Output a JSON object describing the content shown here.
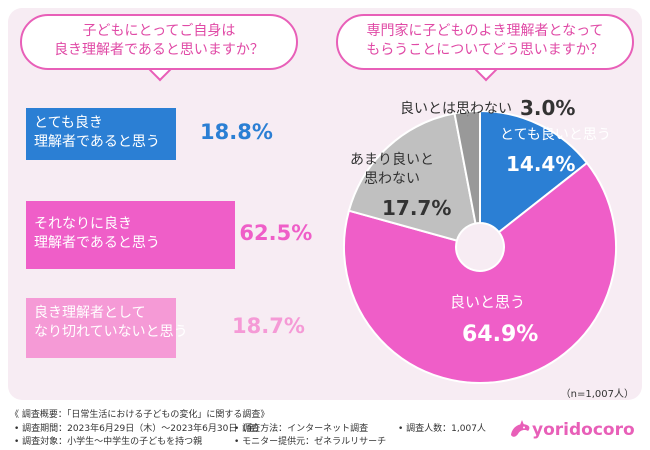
{
  "left_question": {
    "line1": "子どもにとってご自身は",
    "line2": "良き理解者であると思いますか？"
  },
  "right_question": {
    "line1": "専門家に子どものよき理解者となって",
    "line2": "もらうことについてどう思いますか？"
  },
  "colors": {
    "blue": "#2b7fd4",
    "pink": "#ef5ec8",
    "light_pink": "#f59ad6",
    "gray": "#c0c0c0",
    "dark_gray": "#999999",
    "accent": "#e85fb8"
  },
  "chart_data": [
    {
      "type": "bar",
      "orientation": "horizontal",
      "title": "子どもにとってご自身は良き理解者であると思いますか？",
      "categories": [
        {
          "line1": "とても良き",
          "line2": "理解者であると思う"
        },
        {
          "line1": "それなりに良き",
          "line2": "理解者であると思う"
        },
        {
          "line1": "良き理解者として",
          "line2": "なり切れていないと思う"
        }
      ],
      "values": [
        18.8,
        62.5,
        18.7
      ],
      "labels": [
        "18.8%",
        "62.5%",
        "18.7%"
      ],
      "unit": "%"
    },
    {
      "type": "pie",
      "title": "専門家に子どものよき理解者となってもらうことについてどう思いますか？",
      "slices": [
        {
          "name": "とても良いと思う",
          "value": 14.4,
          "label": "14.4%"
        },
        {
          "name": "良いと思う",
          "value": 64.9,
          "label": "64.9%"
        },
        {
          "name_line1": "あまり良いと",
          "name_line2": "思わない",
          "value": 17.7,
          "label": "17.7%"
        },
        {
          "name": "良いとは思わない",
          "value": 3.0,
          "label": "3.0%"
        }
      ]
    }
  ],
  "sample_size": "（n=1,007人）",
  "footer": {
    "title": "《 調査概要：「日常生活における子どもの変化」に関する調査》",
    "period": "• 調査期間：2023年6月29日（木）～2023年6月30日（金）",
    "target": "• 調査対象：小学生～中学生の子どもを持つ親",
    "method": "• 調査方法：インターネット調査",
    "provider": "• モニター提供元：ゼネラルリサーチ",
    "count": "• 調査人数：1,007人"
  },
  "logo": {
    "text": "yoridocoro",
    "icon": "dolphin-icon"
  }
}
